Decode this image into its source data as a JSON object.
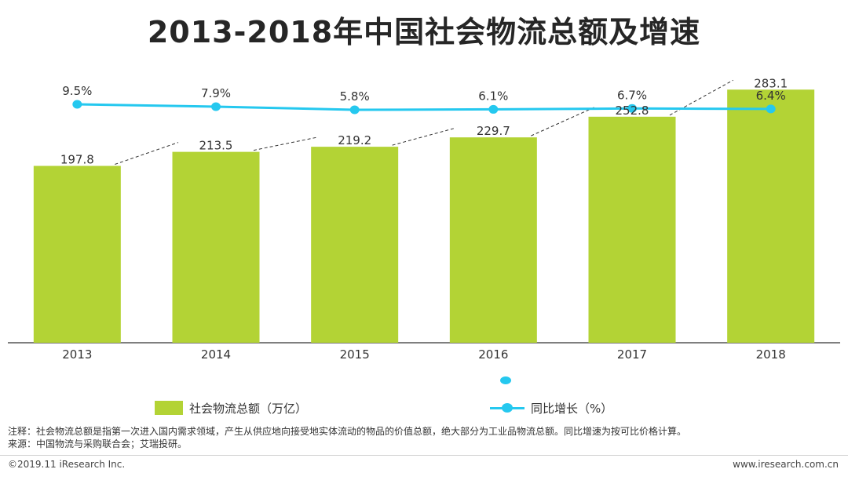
{
  "title": "2013-2018年中国社会物流总额及增速",
  "chart_data": {
    "type": "bar",
    "categories": [
      "2013",
      "2014",
      "2015",
      "2016",
      "2017",
      "2018"
    ],
    "series": [
      {
        "name": "社会物流总额（万亿）",
        "type": "bar",
        "values": [
          197.8,
          213.5,
          219.2,
          229.7,
          252.8,
          283.1
        ],
        "labels": [
          "197.8",
          "213.5",
          "219.2",
          "229.7",
          "252.8",
          "283.1"
        ],
        "color": "#b3d335"
      },
      {
        "name": "同比增长（%）",
        "type": "line",
        "values": [
          9.5,
          7.9,
          5.8,
          6.1,
          6.7,
          6.4
        ],
        "labels": [
          "9.5%",
          "7.9%",
          "5.8%",
          "6.1%",
          "6.7%",
          "6.4%"
        ],
        "color": "#25c8ef"
      }
    ],
    "bar_ylim": [
      0,
      300
    ],
    "trend_line": "dashed",
    "legend_position": "bottom",
    "grid": false
  },
  "notes": {
    "note": "注释：社会物流总额是指第一次进入国内需求领域，产生从供应地向接受地实体流动的物品的价值总额，绝大部分为工业品物流总额。同比增速为按可比价格计算。",
    "source": "来源：中国物流与采购联合会；艾瑞投研。"
  },
  "footer": {
    "copyright": "©2019.11 iResearch Inc.",
    "website": "www.iresearch.com.cn"
  }
}
